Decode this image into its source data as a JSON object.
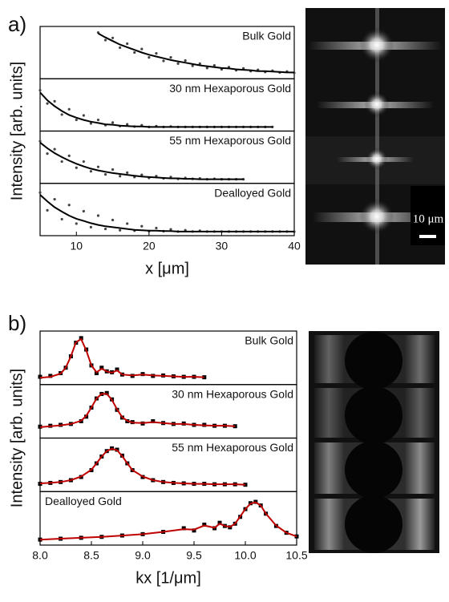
{
  "chart_data": [
    {
      "type": "line",
      "panel_label": "a)",
      "xlabel": "x [μm]",
      "ylabel": "Intensity [arb. units]",
      "xlim": [
        5,
        40
      ],
      "xticks": [
        10,
        20,
        30,
        40
      ],
      "ylim": [
        0,
        1
      ],
      "data_color": "#444444",
      "fit_color": "#000000",
      "scale_bar_label": "10 μm",
      "panels": [
        {
          "label": "Bulk Gold",
          "x": [
            13,
            14,
            15,
            16,
            17,
            18,
            19,
            20,
            21,
            22,
            23,
            24,
            25,
            26,
            27,
            28,
            29,
            30,
            31,
            32,
            33,
            34,
            35,
            36,
            37,
            38,
            39,
            40
          ],
          "values": [
            0.97,
            0.8,
            0.85,
            0.63,
            0.72,
            0.52,
            0.6,
            0.41,
            0.5,
            0.33,
            0.41,
            0.27,
            0.34,
            0.22,
            0.27,
            0.17,
            0.23,
            0.14,
            0.19,
            0.12,
            0.16,
            0.1,
            0.13,
            0.08,
            0.11,
            0.07,
            0.09,
            0.06
          ],
          "fit": [
            0.95,
            0.86,
            0.78,
            0.7,
            0.64,
            0.58,
            0.52,
            0.47,
            0.43,
            0.39,
            0.35,
            0.32,
            0.29,
            0.26,
            0.23,
            0.21,
            0.19,
            0.17,
            0.16,
            0.14,
            0.13,
            0.12,
            0.1,
            0.1,
            0.09,
            0.08,
            0.07,
            0.07
          ]
        },
        {
          "label": "30 nm Hexaporous Gold",
          "x": [
            5,
            6,
            7,
            8,
            9,
            10,
            11,
            12,
            13,
            14,
            15,
            16,
            17,
            18,
            19,
            20,
            21,
            22,
            23,
            24,
            25,
            26,
            27,
            28,
            29,
            30,
            31,
            32,
            33,
            34,
            35,
            36,
            37
          ],
          "values": [
            0.85,
            0.55,
            0.6,
            0.3,
            0.42,
            0.18,
            0.28,
            0.1,
            0.18,
            0.06,
            0.12,
            0.04,
            0.08,
            0.03,
            0.06,
            0.02,
            0.04,
            0.02,
            0.03,
            0.02,
            0.02,
            0.02,
            0.02,
            0.02,
            0.02,
            0.02,
            0.02,
            0.02,
            0.02,
            0.02,
            0.02,
            0.02,
            0.02
          ],
          "fit": [
            0.8,
            0.62,
            0.49,
            0.38,
            0.29,
            0.23,
            0.18,
            0.14,
            0.11,
            0.08,
            0.07,
            0.05,
            0.04,
            0.03,
            0.03,
            0.02,
            0.02,
            0.02,
            0.02,
            0.02,
            0.02,
            0.02,
            0.02,
            0.02,
            0.02,
            0.02,
            0.02,
            0.02,
            0.02,
            0.02,
            0.02,
            0.02,
            0.02
          ]
        },
        {
          "label": "55 nm Hexaporous Gold",
          "x": [
            5,
            6,
            7,
            8,
            9,
            10,
            11,
            12,
            13,
            14,
            15,
            16,
            17,
            18,
            19,
            20,
            21,
            22,
            23,
            24,
            25,
            26,
            27,
            28,
            29,
            30,
            31,
            32,
            33
          ],
          "values": [
            0.88,
            0.6,
            0.7,
            0.42,
            0.55,
            0.28,
            0.42,
            0.2,
            0.3,
            0.13,
            0.24,
            0.09,
            0.17,
            0.07,
            0.12,
            0.05,
            0.09,
            0.04,
            0.07,
            0.03,
            0.05,
            0.03,
            0.04,
            0.02,
            0.03,
            0.02,
            0.02,
            0.02,
            0.02
          ],
          "fit": [
            0.85,
            0.72,
            0.61,
            0.52,
            0.44,
            0.37,
            0.31,
            0.26,
            0.22,
            0.19,
            0.16,
            0.14,
            0.12,
            0.1,
            0.08,
            0.07,
            0.06,
            0.05,
            0.04,
            0.04,
            0.03,
            0.03,
            0.02,
            0.02,
            0.02,
            0.02,
            0.02,
            0.02,
            0.02
          ]
        },
        {
          "label": "Dealloyed Gold",
          "x": [
            5,
            6,
            7,
            8,
            9,
            10,
            11,
            12,
            13,
            14,
            15,
            16,
            17,
            18,
            19,
            20,
            21,
            22,
            23,
            24,
            25,
            26,
            27,
            28,
            29,
            30,
            31,
            32,
            33,
            34,
            35,
            36,
            37,
            38,
            39,
            40
          ],
          "values": [
            0.9,
            0.5,
            0.75,
            0.3,
            0.62,
            0.2,
            0.48,
            0.12,
            0.38,
            0.08,
            0.28,
            0.05,
            0.2,
            0.04,
            0.14,
            0.03,
            0.1,
            0.03,
            0.07,
            0.02,
            0.05,
            0.02,
            0.04,
            0.02,
            0.02,
            0.02,
            0.02,
            0.02,
            0.02,
            0.02,
            0.02,
            0.02,
            0.02,
            0.02,
            0.02,
            0.02
          ],
          "fit": [
            0.85,
            0.7,
            0.57,
            0.47,
            0.38,
            0.31,
            0.26,
            0.21,
            0.17,
            0.14,
            0.12,
            0.1,
            0.08,
            0.06,
            0.05,
            0.04,
            0.04,
            0.03,
            0.03,
            0.02,
            0.02,
            0.02,
            0.02,
            0.02,
            0.02,
            0.02,
            0.02,
            0.02,
            0.02,
            0.02,
            0.02,
            0.02,
            0.02,
            0.02,
            0.02,
            0.02
          ]
        }
      ]
    },
    {
      "type": "line",
      "panel_label": "b)",
      "xlabel": "kx [1/μm]",
      "ylabel": "Intensity [arb. units]",
      "xlim": [
        8.0,
        10.5
      ],
      "xticks": [
        {
          "value": 8,
          "label": "8.0"
        },
        {
          "value": 8.5,
          "label": "8.5"
        },
        {
          "value": 9,
          "label": "9.0"
        },
        {
          "value": 9.5,
          "label": "9.5"
        },
        {
          "value": 10,
          "label": "10.0"
        },
        {
          "value": 10.5,
          "label": "10.5"
        }
      ],
      "ylim": [
        0,
        1
      ],
      "data_color": "#000000",
      "fit_color": "#c00000",
      "panels": [
        {
          "label": "Bulk Gold",
          "x": [
            8.0,
            8.1,
            8.2,
            8.25,
            8.3,
            8.35,
            8.4,
            8.45,
            8.5,
            8.55,
            8.6,
            8.65,
            8.7,
            8.75,
            8.8,
            8.9,
            9.0,
            9.1,
            9.2,
            9.3,
            9.4,
            9.5,
            9.6
          ],
          "values": [
            0.1,
            0.12,
            0.18,
            0.3,
            0.55,
            0.85,
            0.95,
            0.7,
            0.35,
            0.18,
            0.3,
            0.22,
            0.2,
            0.26,
            0.15,
            0.12,
            0.16,
            0.12,
            0.13,
            0.11,
            0.1,
            0.1,
            0.09
          ],
          "fit": [
            0.08,
            0.1,
            0.17,
            0.3,
            0.55,
            0.86,
            0.93,
            0.68,
            0.35,
            0.2,
            0.28,
            0.22,
            0.19,
            0.24,
            0.15,
            0.13,
            0.15,
            0.13,
            0.12,
            0.11,
            0.1,
            0.1,
            0.09
          ]
        },
        {
          "label": "30 nm Hexaporous Gold",
          "x": [
            8.0,
            8.1,
            8.2,
            8.3,
            8.4,
            8.45,
            8.5,
            8.55,
            8.6,
            8.65,
            8.7,
            8.75,
            8.8,
            8.85,
            8.9,
            9.0,
            9.1,
            9.2,
            9.3,
            9.4,
            9.5,
            9.6,
            9.7,
            9.8,
            9.9
          ],
          "values": [
            0.18,
            0.2,
            0.22,
            0.24,
            0.3,
            0.4,
            0.6,
            0.8,
            0.9,
            0.92,
            0.78,
            0.55,
            0.38,
            0.3,
            0.28,
            0.25,
            0.3,
            0.26,
            0.24,
            0.25,
            0.22,
            0.22,
            0.2,
            0.2,
            0.19
          ],
          "fit": [
            0.17,
            0.19,
            0.21,
            0.24,
            0.31,
            0.42,
            0.6,
            0.8,
            0.9,
            0.9,
            0.77,
            0.56,
            0.39,
            0.31,
            0.27,
            0.26,
            0.28,
            0.26,
            0.24,
            0.24,
            0.22,
            0.21,
            0.2,
            0.2,
            0.19
          ]
        },
        {
          "label": "55 nm Hexaporous Gold",
          "x": [
            8.0,
            8.1,
            8.2,
            8.3,
            8.4,
            8.5,
            8.55,
            8.6,
            8.65,
            8.7,
            8.75,
            8.8,
            8.85,
            8.9,
            9.0,
            9.1,
            9.2,
            9.3,
            9.4,
            9.5,
            9.6,
            9.7,
            9.8,
            9.9,
            10.0
          ],
          "values": [
            0.1,
            0.12,
            0.14,
            0.18,
            0.25,
            0.4,
            0.55,
            0.7,
            0.82,
            0.88,
            0.85,
            0.72,
            0.55,
            0.4,
            0.25,
            0.18,
            0.14,
            0.12,
            0.11,
            0.1,
            0.1,
            0.09,
            0.09,
            0.09,
            0.08
          ],
          "fit": [
            0.11,
            0.12,
            0.14,
            0.18,
            0.26,
            0.41,
            0.55,
            0.7,
            0.82,
            0.87,
            0.84,
            0.71,
            0.55,
            0.4,
            0.26,
            0.18,
            0.14,
            0.12,
            0.11,
            0.1,
            0.1,
            0.09,
            0.09,
            0.09,
            0.08
          ]
        },
        {
          "label": "Dealloyed Gold",
          "x": [
            8.0,
            8.2,
            8.4,
            8.6,
            8.8,
            9.0,
            9.2,
            9.4,
            9.5,
            9.6,
            9.7,
            9.75,
            9.8,
            9.85,
            9.9,
            9.95,
            10.0,
            10.05,
            10.1,
            10.15,
            10.2,
            10.3,
            10.4,
            10.5
          ],
          "values": [
            0.05,
            0.07,
            0.09,
            0.11,
            0.14,
            0.17,
            0.22,
            0.3,
            0.25,
            0.38,
            0.3,
            0.42,
            0.35,
            0.32,
            0.4,
            0.55,
            0.72,
            0.85,
            0.88,
            0.8,
            0.62,
            0.35,
            0.2,
            0.12
          ],
          "fit": [
            0.05,
            0.07,
            0.09,
            0.11,
            0.14,
            0.17,
            0.22,
            0.28,
            0.27,
            0.36,
            0.31,
            0.4,
            0.35,
            0.33,
            0.4,
            0.56,
            0.72,
            0.84,
            0.87,
            0.8,
            0.62,
            0.36,
            0.2,
            0.12
          ]
        }
      ]
    }
  ]
}
